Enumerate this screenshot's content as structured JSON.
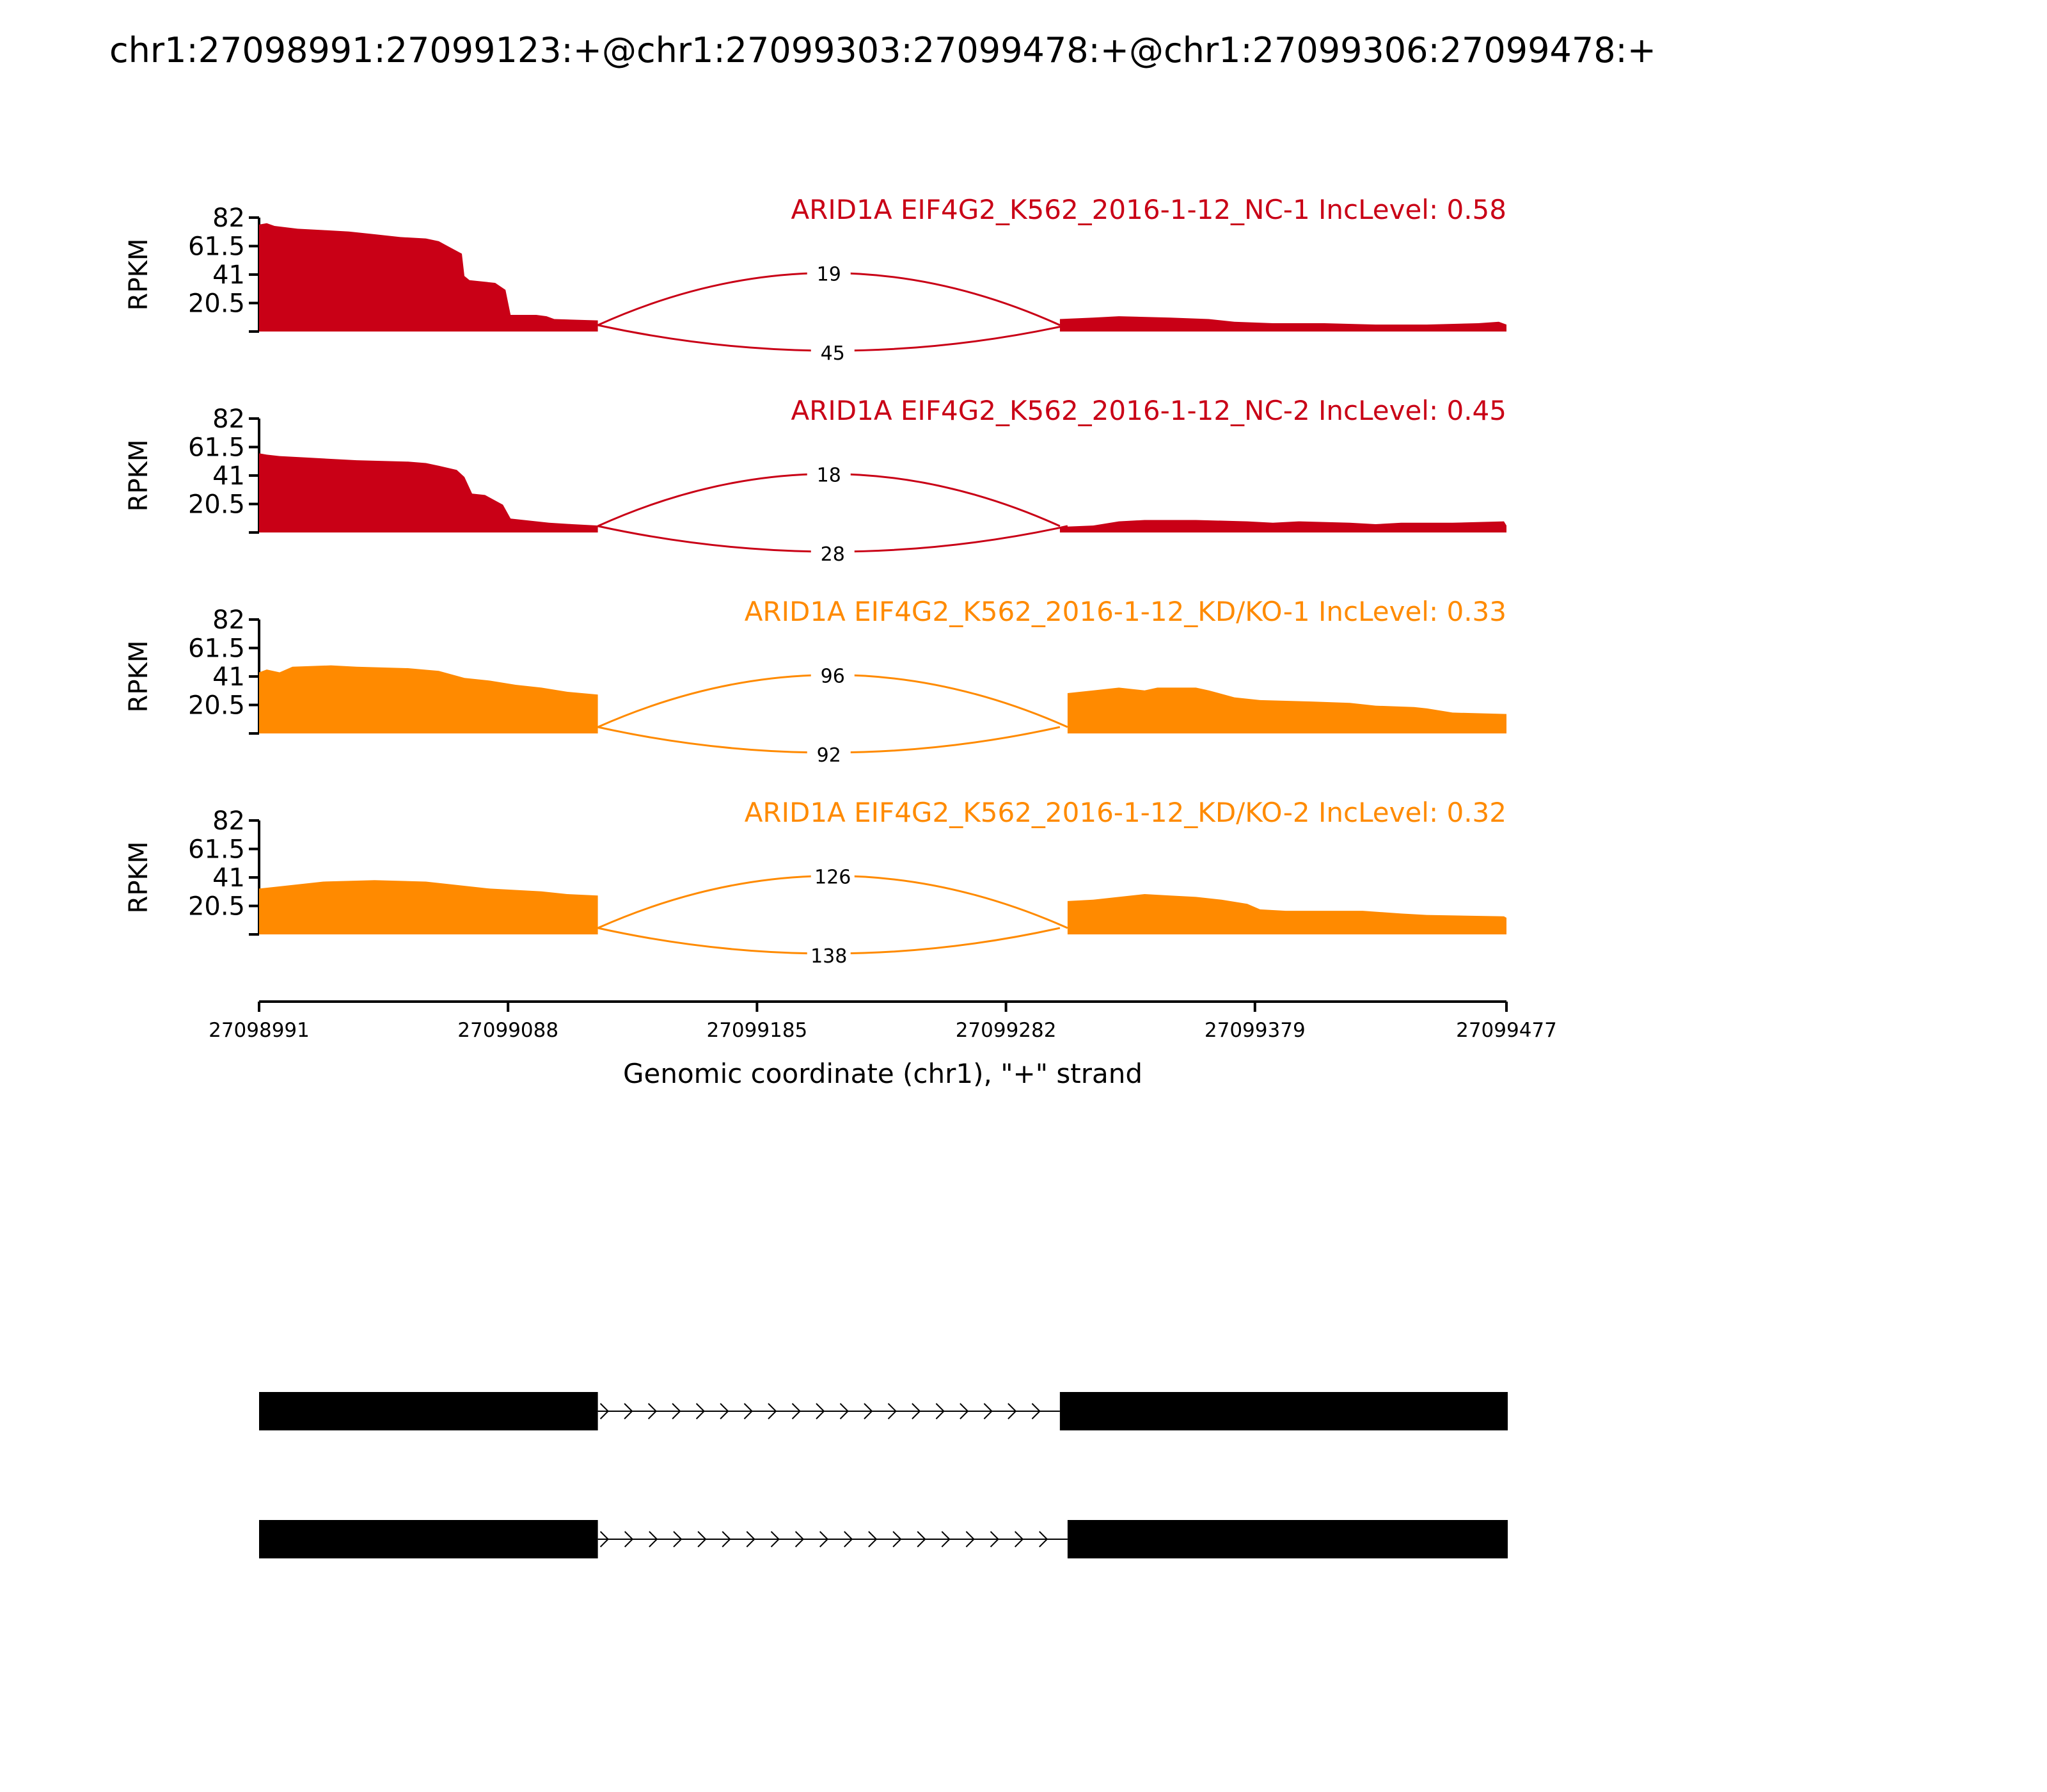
{
  "title": "chr1:27098991:27099123:+@chr1:27099303:27099478:+@chr1:27099306:27099478:+",
  "colors": {
    "NC": "#c90016",
    "KDKO": "#ff8a00"
  },
  "chart_data": {
    "type": "area",
    "title": "chr1:27098991:27099123:+@chr1:27099303:27099478:+@chr1:27099306:27099478:+",
    "xlabel": "Genomic coordinate (chr1), \"+\" strand",
    "ylabel": "RPKM",
    "xlim": [
      27098991,
      27099477
    ],
    "ylim": [
      0,
      82
    ],
    "xticks": [
      27098991,
      27099088,
      27099185,
      27099282,
      27099379,
      27099477
    ],
    "yticks": [
      "20.5",
      "41",
      "61.5",
      "82"
    ],
    "panels": [
      {
        "label": "ARID1A EIF4G2_K562_2016-1-12_NC-1 IncLevel: 0.58",
        "group": "NC",
        "coverage": [
          [
            27098991,
            77
          ],
          [
            27098994,
            78
          ],
          [
            27098997,
            76
          ],
          [
            27099006,
            74
          ],
          [
            27099016,
            73
          ],
          [
            27099026,
            72
          ],
          [
            27099036,
            70
          ],
          [
            27099046,
            68
          ],
          [
            27099056,
            67
          ],
          [
            27099061,
            65
          ],
          [
            27099066,
            60
          ],
          [
            27099070,
            56
          ],
          [
            27099071,
            40
          ],
          [
            27099073,
            37
          ],
          [
            27099083,
            35
          ],
          [
            27099087,
            30
          ],
          [
            27099089,
            12
          ],
          [
            27099099,
            12
          ],
          [
            27099103,
            11
          ],
          [
            27099106,
            9
          ],
          [
            27099123,
            8
          ],
          [
            27099303,
            9
          ],
          [
            27099316,
            10
          ],
          [
            27099326,
            11
          ],
          [
            27099346,
            10
          ],
          [
            27099361,
            9
          ],
          [
            27099371,
            7
          ],
          [
            27099386,
            6
          ],
          [
            27099406,
            6
          ],
          [
            27099426,
            5
          ],
          [
            27099446,
            5
          ],
          [
            27099466,
            6
          ],
          [
            27099474,
            7
          ],
          [
            27099477,
            5
          ]
        ],
        "junctions": [
          {
            "from": 27099123,
            "to": 27099303,
            "count": "19",
            "side": "above"
          },
          {
            "from": 27099123,
            "to": 27099306,
            "count": "45",
            "side": "below"
          }
        ]
      },
      {
        "label": "ARID1A EIF4G2_K562_2016-1-12_NC-2 IncLevel: 0.45",
        "group": "NC",
        "coverage": [
          [
            27098991,
            57
          ],
          [
            27098994,
            56
          ],
          [
            27098999,
            55
          ],
          [
            27099009,
            54
          ],
          [
            27099019,
            53
          ],
          [
            27099029,
            52
          ],
          [
            27099049,
            51
          ],
          [
            27099056,
            50
          ],
          [
            27099061,
            48
          ],
          [
            27099068,
            45
          ],
          [
            27099071,
            40
          ],
          [
            27099074,
            28
          ],
          [
            27099079,
            27
          ],
          [
            27099086,
            20
          ],
          [
            27099089,
            10
          ],
          [
            27099104,
            7
          ],
          [
            27099113,
            6
          ],
          [
            27099123,
            5
          ],
          [
            27099303,
            4
          ],
          [
            27099316,
            5
          ],
          [
            27099326,
            8
          ],
          [
            27099336,
            9
          ],
          [
            27099356,
            9
          ],
          [
            27099376,
            8
          ],
          [
            27099386,
            7
          ],
          [
            27099396,
            8
          ],
          [
            27099416,
            7
          ],
          [
            27099426,
            6
          ],
          [
            27099436,
            7
          ],
          [
            27099456,
            7
          ],
          [
            27099476,
            8
          ],
          [
            27099477,
            5
          ]
        ],
        "junctions": [
          {
            "from": 27099123,
            "to": 27099303,
            "count": "18",
            "side": "above"
          },
          {
            "from": 27099123,
            "to": 27099306,
            "count": "28",
            "side": "below"
          }
        ]
      },
      {
        "label": "ARID1A EIF4G2_K562_2016-1-12_KD/KO-1 IncLevel: 0.33",
        "group": "KDKO",
        "coverage": [
          [
            27098991,
            44
          ],
          [
            27098994,
            46
          ],
          [
            27098999,
            44
          ],
          [
            27099004,
            48
          ],
          [
            27099019,
            49
          ],
          [
            27099029,
            48
          ],
          [
            27099049,
            47
          ],
          [
            27099061,
            45
          ],
          [
            27099071,
            40
          ],
          [
            27099081,
            38
          ],
          [
            27099091,
            35
          ],
          [
            27099101,
            33
          ],
          [
            27099111,
            30
          ],
          [
            27099123,
            28
          ],
          [
            27099306,
            29
          ],
          [
            27099316,
            31
          ],
          [
            27099326,
            33
          ],
          [
            27099336,
            31
          ],
          [
            27099341,
            33
          ],
          [
            27099356,
            33
          ],
          [
            27099361,
            31
          ],
          [
            27099371,
            26
          ],
          [
            27099381,
            24
          ],
          [
            27099401,
            23
          ],
          [
            27099416,
            22
          ],
          [
            27099426,
            20
          ],
          [
            27099441,
            19
          ],
          [
            27099446,
            18
          ],
          [
            27099456,
            15
          ],
          [
            27099477,
            14
          ]
        ],
        "junctions": [
          {
            "from": 27099123,
            "to": 27099306,
            "count": "96",
            "side": "above"
          },
          {
            "from": 27099123,
            "to": 27099303,
            "count": "92",
            "side": "below"
          }
        ]
      },
      {
        "label": "ARID1A EIF4G2_K562_2016-1-12_KD/KO-2 IncLevel: 0.32",
        "group": "KDKO",
        "coverage": [
          [
            27098991,
            33
          ],
          [
            27098996,
            34
          ],
          [
            27099006,
            36
          ],
          [
            27099016,
            38
          ],
          [
            27099036,
            39
          ],
          [
            27099056,
            38
          ],
          [
            27099066,
            36
          ],
          [
            27099081,
            33
          ],
          [
            27099101,
            31
          ],
          [
            27099111,
            29
          ],
          [
            27099123,
            28
          ],
          [
            27099306,
            24
          ],
          [
            27099316,
            25
          ],
          [
            27099326,
            27
          ],
          [
            27099336,
            29
          ],
          [
            27099346,
            28
          ],
          [
            27099356,
            27
          ],
          [
            27099366,
            25
          ],
          [
            27099376,
            22
          ],
          [
            27099381,
            18
          ],
          [
            27099391,
            17
          ],
          [
            27099401,
            17
          ],
          [
            27099421,
            17
          ],
          [
            27099436,
            15
          ],
          [
            27099446,
            14
          ],
          [
            27099476,
            13
          ],
          [
            27099477,
            12
          ]
        ],
        "junctions": [
          {
            "from": 27099123,
            "to": 27099306,
            "count": "126",
            "side": "above"
          },
          {
            "from": 27099123,
            "to": 27099303,
            "count": "138",
            "side": "below"
          }
        ]
      }
    ],
    "transcripts": [
      {
        "exons": [
          [
            27098991,
            27099123
          ],
          [
            27099303,
            27099477
          ]
        ]
      },
      {
        "exons": [
          [
            27098991,
            27099123
          ],
          [
            27099306,
            27099477
          ]
        ]
      }
    ]
  }
}
